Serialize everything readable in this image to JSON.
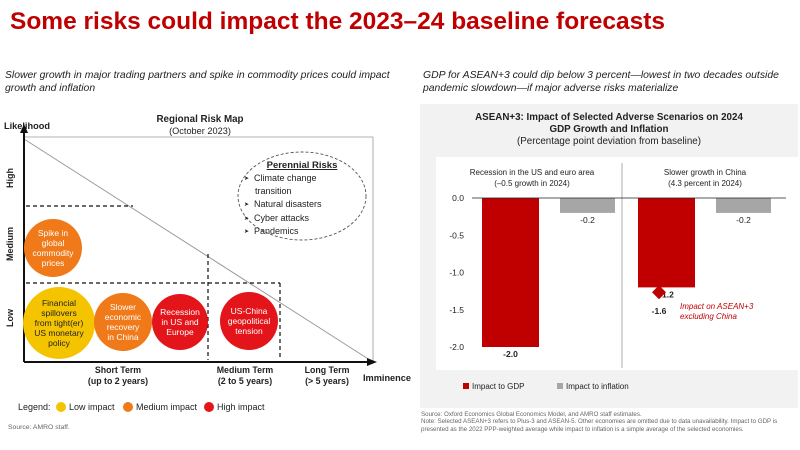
{
  "title": "Some risks could impact the 2023–24 baseline forecasts",
  "left": {
    "subtitle": "Slower growth in major trading partners and spike in commodity prices could impact growth and inflation",
    "map_title": "Regional Risk Map",
    "map_date": "(October 2023)",
    "y_axis_title": "Likelihood",
    "x_axis_title": "Imminence",
    "y_levels": [
      "High",
      "Medium",
      "Low"
    ],
    "x_terms": [
      {
        "name": "Short Term",
        "range": "(up to 2 years)"
      },
      {
        "name": "Medium Term",
        "range": "(2 to 5 years)"
      },
      {
        "name": "Long Term",
        "range": "(> 5 years)"
      }
    ],
    "perennial_title": "Perennial Risks",
    "perennial_items": [
      "Climate change",
      "transition",
      "Natural disasters",
      "Cyber attacks",
      "Pandemics"
    ],
    "risks": [
      {
        "label": "Spike in global commodity prices",
        "lines": [
          "Spike in",
          "global",
          "commodity",
          "prices"
        ],
        "impact": "Medium impact"
      },
      {
        "label": "Financial spillovers from tight(er) US monetary policy",
        "lines": [
          "Financial",
          "spillovers",
          "from tight(er)",
          "US monetary",
          "policy"
        ],
        "impact": "Low impact"
      },
      {
        "label": "Slower economic recovery in China",
        "lines": [
          "Slower",
          "economic",
          "recovery",
          "in China"
        ],
        "impact": "Medium impact"
      },
      {
        "label": "Recession in US and Europe",
        "lines": [
          "Recession",
          "in US and",
          "Europe"
        ],
        "impact": "High impact"
      },
      {
        "label": "US-China geopolitical tension",
        "lines": [
          "US-China",
          "geopolitical",
          "tension"
        ],
        "impact": "High impact"
      }
    ],
    "legend_label": "Legend:",
    "legend": [
      {
        "label": "Low impact",
        "color": "#f5c400"
      },
      {
        "label": "Medium impact",
        "color": "#f07a1a"
      },
      {
        "label": "High impact",
        "color": "#e3151a"
      }
    ],
    "source": "Source: AMRO staff."
  },
  "right": {
    "subtitle": "GDP for ASEAN+3 could dip below 3 percent—lowest in two decades outside pandemic slowdown—if major adverse risks materialize",
    "source": "Source: Oxford Economics Global Economics Model, and AMRO staff estimates.",
    "note": "Note: Selected ASEAN+3 refers to Plus-3 and ASEAN-5. Other economies are omitted due to data unavailability. Impact to GDP is presented as the 2022 PPP-weighted average while impact to inflation is a simple average of the selected economies."
  },
  "chart_data": {
    "type": "bar",
    "title": "ASEAN+3: Impact of Selected Adverse Scenarios on 2024",
    "title_line2": "GDP Growth and Inflation",
    "subtitle": "(Percentage point deviation from baseline)",
    "panels": [
      {
        "title": "Recession in the US and euro area",
        "subtitle": "(–0.5 growth in 2024)"
      },
      {
        "title": "Slower growth in China",
        "subtitle": "(4.3 percent in 2024)"
      }
    ],
    "series": [
      {
        "name": "Impact to GDP",
        "color": "#c00000",
        "values": [
          -2.0,
          -1.2
        ],
        "labels": [
          "-2.0",
          "-1.2"
        ]
      },
      {
        "name": "Impact to inflation",
        "color": "#a6a6a6",
        "values": [
          -0.2,
          -0.2
        ],
        "labels": [
          "-0.2",
          "-0.2"
        ]
      }
    ],
    "marker": {
      "label": "-1.6",
      "value": -1.6,
      "panel": 1,
      "annotation_lines": [
        "Impact on ASEAN+3",
        "excluding China"
      ],
      "color": "#c00000"
    },
    "yticks": [
      "0.0",
      "-0.5",
      "-1.0",
      "-1.5",
      "-2.0"
    ],
    "ytick_values": [
      0,
      -0.5,
      -1.0,
      -1.5,
      -2.0
    ],
    "ylim": [
      -2.1,
      0.15
    ],
    "legend_position": "bottom-left"
  }
}
